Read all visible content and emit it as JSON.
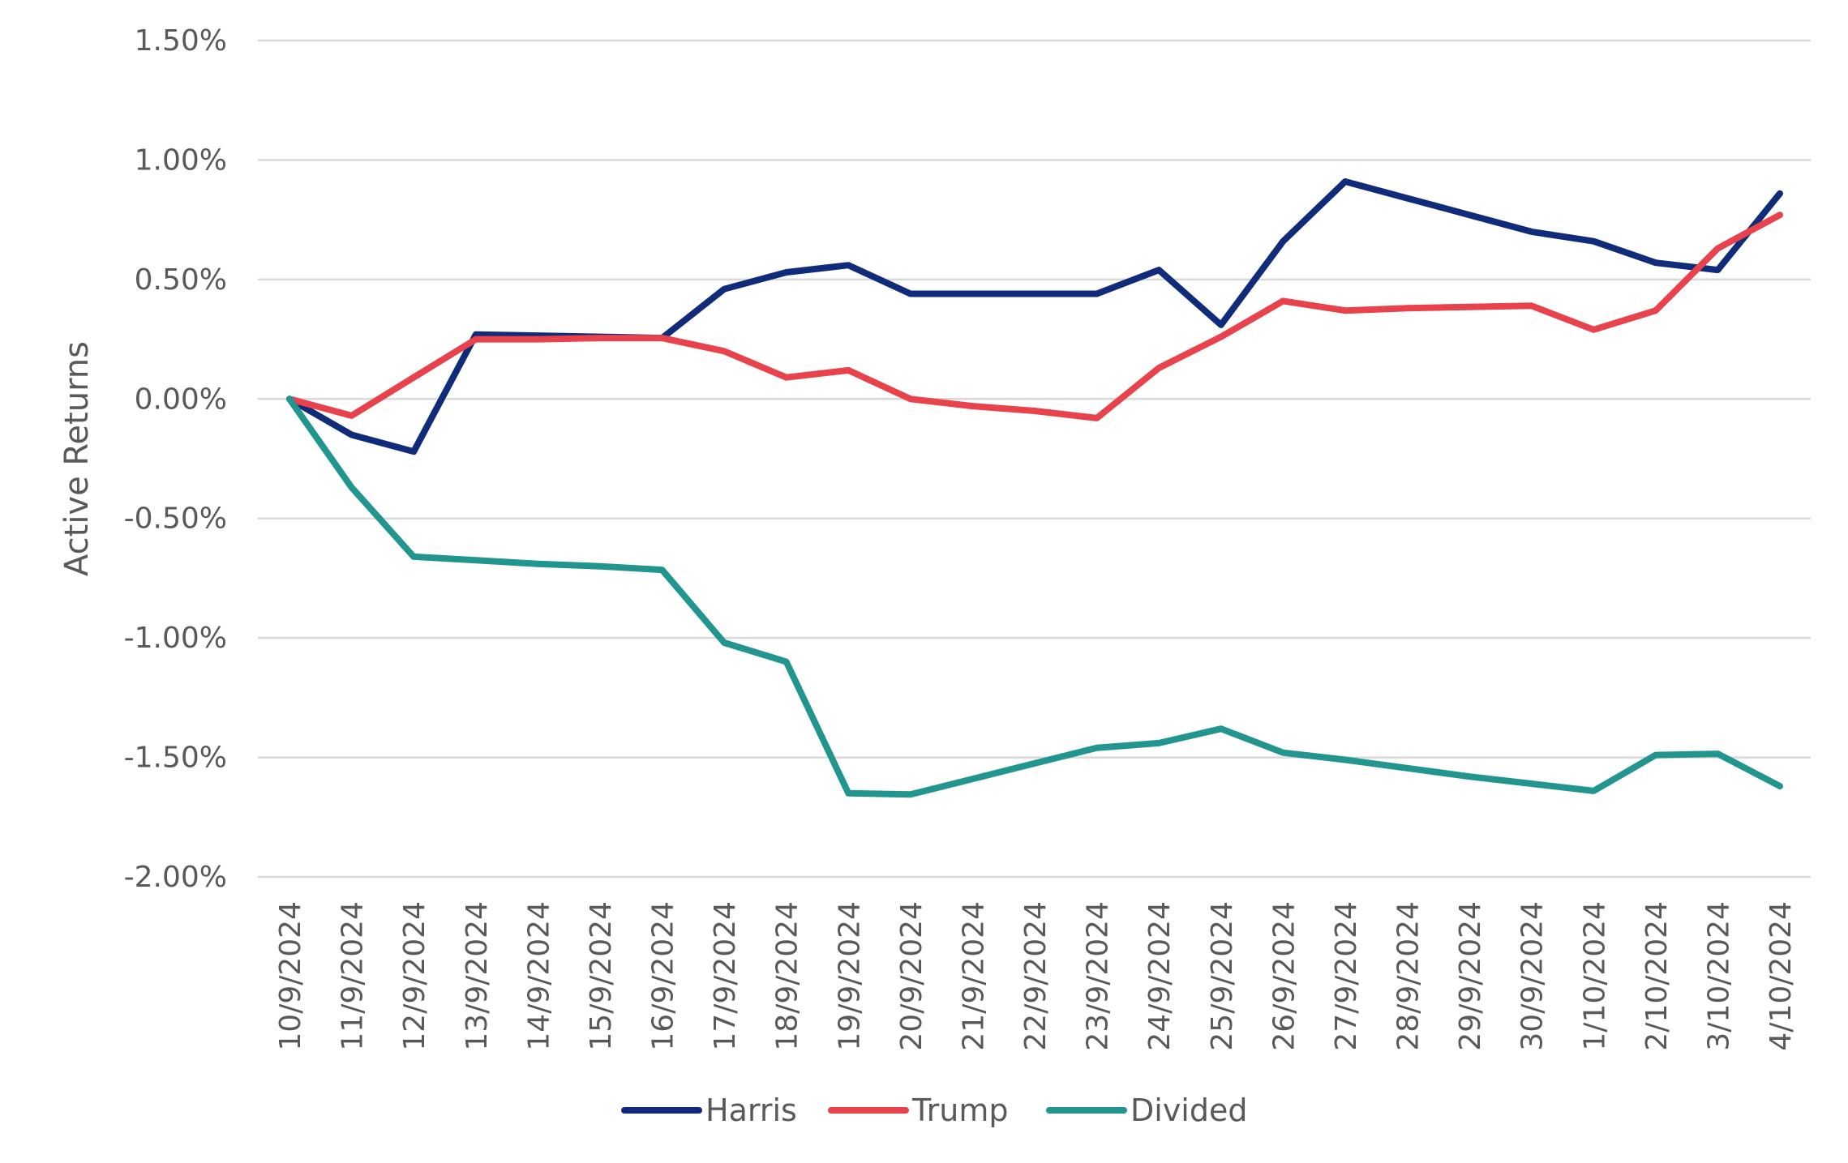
{
  "chart_data": {
    "type": "line",
    "title": "",
    "xlabel": "",
    "ylabel": "Active Returns",
    "ylim": [
      -2.0,
      1.5
    ],
    "y_ticks": [
      1.5,
      1.0,
      0.5,
      0.0,
      -0.5,
      -1.0,
      -1.5,
      -2.0
    ],
    "y_tick_labels": [
      "1.50%",
      "1.00%",
      "0.50%",
      "0.00%",
      "-0.50%",
      "-1.00%",
      "-1.50%",
      "-2.00%"
    ],
    "grid": true,
    "legend_position": "bottom",
    "categories": [
      "10/9/2024",
      "11/9/2024",
      "12/9/2024",
      "13/9/2024",
      "14/9/2024",
      "15/9/2024",
      "16/9/2024",
      "17/9/2024",
      "18/9/2024",
      "19/9/2024",
      "20/9/2024",
      "21/9/2024",
      "22/9/2024",
      "23/9/2024",
      "24/9/2024",
      "25/9/2024",
      "26/9/2024",
      "27/9/2024",
      "28/9/2024",
      "29/9/2024",
      "30/9/2024",
      "1/10/2024",
      "2/10/2024",
      "3/10/2024",
      "4/10/2024"
    ],
    "series": [
      {
        "name": "Harris",
        "color": "#0f2b7a",
        "values": [
          0.0,
          -0.15,
          -0.22,
          0.27,
          0.265,
          0.26,
          0.255,
          0.46,
          0.53,
          0.56,
          0.44,
          0.44,
          0.44,
          0.44,
          0.54,
          0.31,
          0.66,
          0.91,
          0.84,
          0.77,
          0.7,
          0.66,
          0.57,
          0.54,
          0.86
        ]
      },
      {
        "name": "Trump",
        "color": "#e8424c",
        "values": [
          0.0,
          -0.07,
          0.09,
          0.25,
          0.25,
          0.255,
          0.255,
          0.2,
          0.09,
          0.12,
          0.0,
          -0.03,
          -0.05,
          -0.08,
          0.13,
          0.26,
          0.41,
          0.37,
          0.38,
          0.385,
          0.39,
          0.29,
          0.37,
          0.63,
          0.77
        ]
      },
      {
        "name": "Divided",
        "color": "#23958f",
        "values": [
          0.0,
          -0.37,
          -0.66,
          -0.675,
          -0.69,
          -0.7,
          -0.715,
          -1.02,
          -1.1,
          -1.65,
          -1.655,
          -1.59,
          -1.525,
          -1.46,
          -1.44,
          -1.38,
          -1.48,
          -1.51,
          -1.545,
          -1.58,
          -1.61,
          -1.64,
          -1.49,
          -1.485,
          -1.62
        ]
      }
    ]
  }
}
